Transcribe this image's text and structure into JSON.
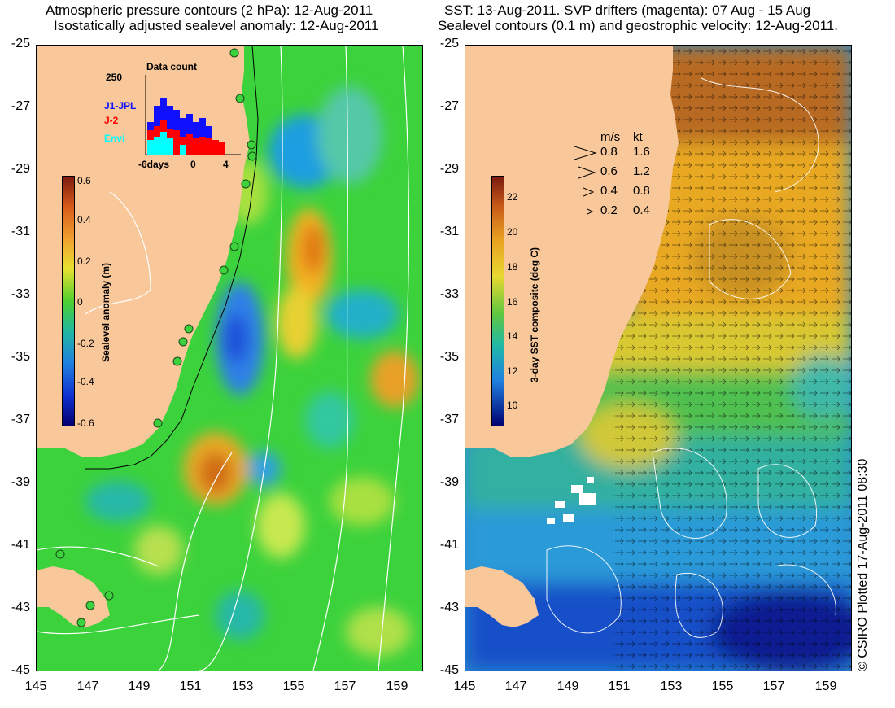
{
  "left_title": {
    "line1": "Atmospheric pressure contours (2 hPa): 12-Aug-2011",
    "line2": "Isostatically adjusted sealevel anomaly: 12-Aug-2011"
  },
  "right_title": {
    "line1": "SST: 13-Aug-2011. SVP drifters (magenta): 07 Aug - 15 Aug",
    "line2": "Sealevel contours (0.1 m) and geostrophic velocity: 12-Aug-2011."
  },
  "y_ticks": [
    "-25",
    "-27",
    "-29",
    "-31",
    "-33",
    "-35",
    "-37",
    "-39",
    "-41",
    "-43",
    "-45"
  ],
  "x_ticks": [
    "145",
    "147",
    "149",
    "151",
    "153",
    "155",
    "157",
    "159"
  ],
  "left_colorbar": {
    "label": "Sealevel anomaly (m)",
    "ticks": [
      "0.6",
      "0.4",
      "0.2",
      "0",
      "-0.2",
      "-0.4",
      "-0.6"
    ]
  },
  "right_colorbar": {
    "label": "3-day SST composite (deg C)",
    "ticks": [
      "22",
      "20",
      "18",
      "16",
      "14",
      "12",
      "10"
    ]
  },
  "data_count": {
    "title": "Data count",
    "max_label": "250",
    "series": [
      "J1-JPL",
      "J-2",
      "Envi"
    ],
    "series_colors": [
      "#1010ff",
      "#ff0000",
      "#00ffff"
    ],
    "x_ticks": [
      "-6days",
      "0",
      "4"
    ]
  },
  "velocity_legend": {
    "header_ms": "m/s",
    "header_kt": "kt",
    "rows": [
      {
        "ms": "0.8",
        "kt": "1.6"
      },
      {
        "ms": "0.6",
        "kt": "1.2"
      },
      {
        "ms": "0.4",
        "kt": "0.8"
      },
      {
        "ms": "0.2",
        "kt": "0.4"
      }
    ]
  },
  "credit": "© CSIRO Plotted 17-Aug-2011 08:30",
  "colors": {
    "land": "#f8c79a",
    "ocean_left_base": "#3cd23c",
    "ocean_right_base": "#2b8fd0",
    "contour": "#ffffff",
    "coast_line": "#000000"
  }
}
